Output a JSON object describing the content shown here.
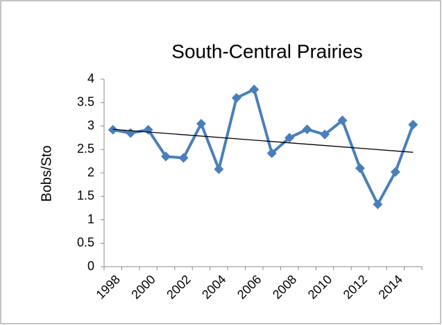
{
  "chart_data": {
    "type": "line",
    "title": "South-Central Prairies",
    "y_label": "Bobs/Sto",
    "categories": [
      "1998",
      null,
      "2000",
      null,
      "2002",
      null,
      "2004",
      null,
      "2006",
      null,
      "2008",
      null,
      "2010",
      null,
      "2012",
      null,
      "2014",
      null
    ],
    "series": [
      {
        "color": "#4a7ebb",
        "values": [
          2.92,
          2.85,
          2.92,
          2.35,
          2.32,
          3.05,
          2.08,
          3.6,
          3.78,
          2.42,
          2.75,
          2.93,
          2.82,
          3.12,
          2.1,
          1.33,
          2.02,
          3.03
        ]
      }
    ],
    "trendline": {
      "color": "#000000",
      "values": [
        2.93,
        2.44
      ]
    },
    "ylim": [
      0,
      4
    ],
    "yticks": [
      0,
      0.5,
      1,
      1.5,
      2,
      2.5,
      3,
      3.5,
      4
    ],
    "grid": false
  }
}
